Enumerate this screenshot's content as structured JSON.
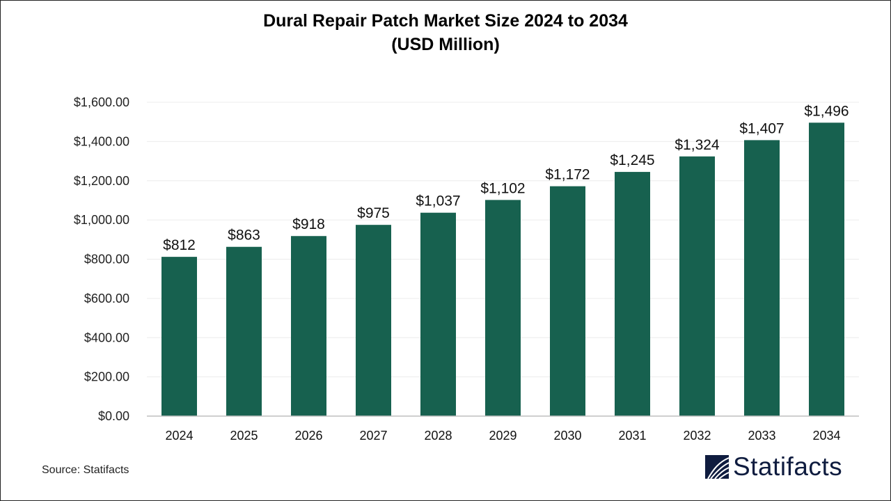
{
  "chart_data": {
    "type": "bar",
    "title": "Dural Repair Patch Market Size 2024 to 2034",
    "subtitle": "(USD Million)",
    "categories": [
      "2024",
      "2025",
      "2026",
      "2027",
      "2028",
      "2029",
      "2030",
      "2031",
      "2032",
      "2033",
      "2034"
    ],
    "values": [
      812,
      863,
      918,
      975,
      1037,
      1102,
      1172,
      1245,
      1324,
      1407,
      1496
    ],
    "data_labels": [
      "$812",
      "$863",
      "$918",
      "$975",
      "$1,037",
      "$1,102",
      "$1,172",
      "$1,245",
      "$1,324",
      "$1,407",
      "$1,496"
    ],
    "yticks": [
      "$0.00",
      "$200.00",
      "$400.00",
      "$600.00",
      "$800.00",
      "$1,000.00",
      "$1,200.00",
      "$1,400.00",
      "$1,600.00"
    ],
    "ylim": [
      0,
      1600
    ],
    "xlabel": "",
    "ylabel": "",
    "grid": true,
    "bar_color": "#17614f"
  },
  "source": "Source: Statifacts",
  "logo_text": "Statifacts"
}
